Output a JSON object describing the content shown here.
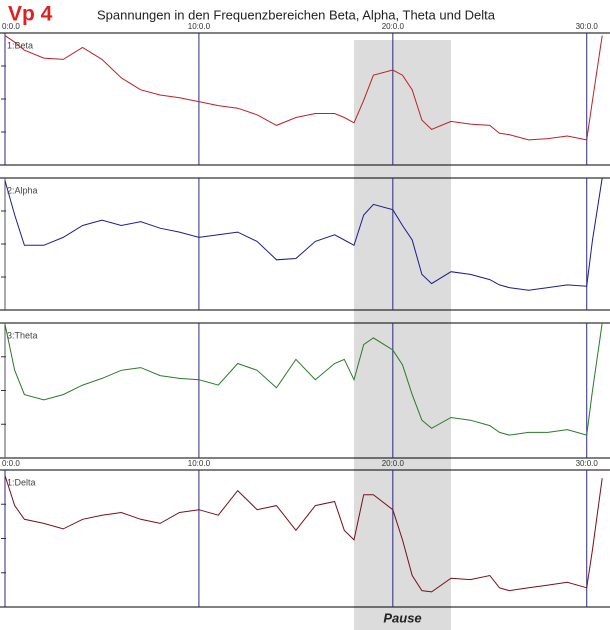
{
  "header": {
    "title": "Vp 4",
    "subtitle": "Spannungen in den Frequenzbereichen Beta, Alpha, Theta und Delta"
  },
  "pause": {
    "label": "Pause",
    "range": [
      18,
      23
    ]
  },
  "chart_data": [
    {
      "type": "line",
      "x": [
        0,
        0.5,
        1,
        2,
        3,
        4,
        5,
        6,
        7,
        8,
        9,
        10,
        11,
        12,
        13,
        14,
        15,
        16,
        17,
        17.5,
        18,
        18.5,
        19,
        20,
        20.5,
        21,
        21.5,
        22,
        23,
        24,
        25,
        25.5,
        26,
        27,
        28,
        29,
        30,
        30.3,
        30.8
      ],
      "series": [
        {
          "name": "1:Beta",
          "color": "#b8232a",
          "values": [
            98,
            93,
            87,
            81,
            80,
            89,
            80,
            66,
            57,
            53,
            51,
            48,
            45,
            43,
            38,
            30,
            36,
            39,
            39,
            36,
            32,
            49,
            68,
            72,
            68,
            57,
            34,
            27,
            33,
            31,
            30,
            24,
            23,
            19,
            20,
            22,
            19,
            49,
            98
          ]
        }
      ],
      "xlim": [
        0,
        31.2
      ],
      "ylim": [
        0,
        100
      ],
      "xticks": [
        {
          "value": 0,
          "label": "0:0.0"
        },
        {
          "value": 10,
          "label": "10:0.0"
        },
        {
          "value": 20,
          "label": "20:0.0"
        },
        {
          "value": 30,
          "label": "30:0.0"
        }
      ],
      "yticks": [
        25,
        50,
        75
      ]
    },
    {
      "type": "line",
      "x": [
        0,
        0.5,
        1,
        2,
        3,
        4,
        5,
        6,
        7,
        8,
        9,
        10,
        11,
        12,
        13,
        14,
        15,
        16,
        17,
        17.5,
        18,
        18.5,
        19,
        20,
        20.5,
        21,
        21.5,
        22,
        23,
        24,
        25,
        25.5,
        26,
        27,
        28,
        29,
        30,
        30.3,
        30.8
      ],
      "series": [
        {
          "name": "2:Alpha",
          "color": "#1c1c8e",
          "values": [
            98,
            72,
            49,
            49,
            55,
            64,
            68,
            64,
            67,
            62,
            59,
            55,
            57,
            59,
            52,
            38,
            39,
            52,
            57,
            53,
            49,
            72,
            80,
            76,
            64,
            53,
            27,
            20,
            29,
            27,
            23,
            19,
            17,
            15,
            17,
            19,
            18,
            53,
            100
          ]
        }
      ],
      "xlim": [
        0,
        31.2
      ],
      "ylim": [
        0,
        100
      ],
      "xticks": [
        10,
        20,
        30
      ],
      "yticks": [
        25,
        50,
        75
      ]
    },
    {
      "type": "line",
      "x": [
        0,
        0.5,
        1,
        2,
        3,
        4,
        5,
        6,
        7,
        8,
        9,
        10,
        11,
        12,
        13,
        14,
        15,
        16,
        17,
        17.5,
        18,
        18.5,
        19,
        20,
        20.5,
        21,
        21.5,
        22,
        23,
        24,
        25,
        25.5,
        26,
        27,
        28,
        29,
        30,
        30.3,
        30.8
      ],
      "series": [
        {
          "name": "3:Theta",
          "color": "#2a7a2a",
          "values": [
            99,
            65,
            47,
            43,
            47,
            54,
            59,
            65,
            67,
            61,
            59,
            58,
            54,
            70,
            65,
            52,
            73,
            58,
            70,
            73,
            58,
            84,
            89,
            80,
            69,
            47,
            28,
            22,
            30,
            28,
            24,
            19,
            17,
            19,
            19,
            21,
            17,
            50,
            100
          ]
        }
      ],
      "xlim": [
        0,
        31.2
      ],
      "ylim": [
        0,
        100
      ],
      "xticks": [
        10,
        20,
        30
      ],
      "yticks": [
        25,
        50,
        75
      ]
    },
    {
      "type": "line",
      "x": [
        0,
        0.5,
        1,
        2,
        3,
        4,
        5,
        6,
        7,
        8,
        9,
        10,
        11,
        12,
        13,
        14,
        15,
        16,
        17,
        17.5,
        18,
        18.5,
        19,
        20,
        20.5,
        21,
        21.5,
        22,
        23,
        24,
        25,
        25.5,
        26,
        27,
        28,
        29,
        30,
        30.3,
        30.8
      ],
      "series": [
        {
          "name": "1:Delta",
          "color": "#74101e",
          "values": [
            96,
            74,
            64,
            61,
            57,
            64,
            67,
            69,
            64,
            61,
            69,
            71,
            67,
            85,
            71,
            74,
            56,
            74,
            77,
            56,
            49,
            82,
            82,
            71,
            49,
            23,
            12,
            11,
            21,
            20,
            23,
            14,
            12,
            14,
            16,
            18,
            14,
            42,
            94
          ]
        }
      ],
      "xlim": [
        0,
        31.2
      ],
      "ylim": [
        0,
        100
      ],
      "xticks": [
        {
          "value": 0,
          "label": "0:0.0"
        },
        {
          "value": 10,
          "label": "10:0.0"
        },
        {
          "value": 20,
          "label": "20:0.0"
        },
        {
          "value": 30,
          "label": "30:0.0"
        }
      ],
      "yticks": [
        25,
        50,
        75
      ]
    }
  ]
}
